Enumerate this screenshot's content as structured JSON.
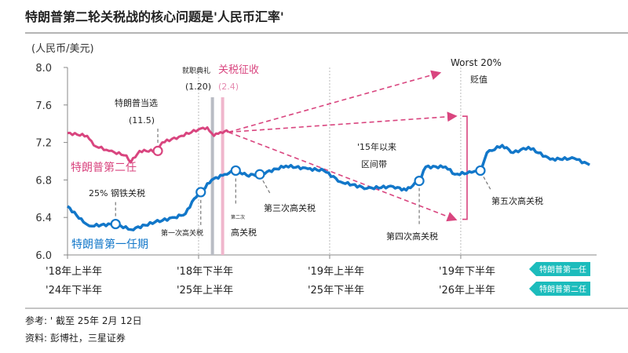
{
  "title": "特朗普第二轮关税战的核心问题是'人民币汇率'",
  "footnote": "参考: ' 截至 25年 2月 12日",
  "source": "资料: 彭博社，三星证券",
  "colors": {
    "first_term": "#1277c9",
    "second_term": "#d9457f",
    "badge": "#1cbcbc",
    "inauguration_bar": "#b9bcc4",
    "tariff_bar": "#f0b6cc"
  },
  "chart_data": {
    "type": "line",
    "ylabel": "(人民币/美元)",
    "ylim": [
      6.0,
      8.0
    ],
    "yticks": [
      "6.0",
      "6.4",
      "6.8",
      "7.2",
      "7.6",
      "8.0"
    ],
    "xticks_first_term": [
      "'18年上半年",
      "'18年下半年",
      "'19年上半年",
      "'19年下半年"
    ],
    "xticks_second_term": [
      "'24年下半年",
      "'25年上半年",
      "'25年下半年",
      "'26年上半年"
    ],
    "legend": [
      {
        "label": "特朗普第一任",
        "series": "first_term"
      },
      {
        "label": "特朗普第二任",
        "series": "second_term"
      }
    ],
    "series": [
      {
        "name": "特朗普第一任期",
        "key": "first_term",
        "points": [
          [
            "2018-01-01",
            6.52
          ],
          [
            "2018-01-23",
            6.35
          ],
          [
            "2018-02-01",
            6.31
          ],
          [
            "2018-03-07",
            6.33
          ],
          [
            "2018-03-28",
            6.27
          ],
          [
            "2018-05-01",
            6.35
          ],
          [
            "2018-05-28",
            6.4
          ],
          [
            "2018-06-13",
            6.44
          ],
          [
            "2018-06-25",
            6.6
          ],
          [
            "2018-07-04",
            6.67
          ],
          [
            "2018-07-19",
            6.8
          ],
          [
            "2018-08-07",
            6.86
          ],
          [
            "2018-08-22",
            6.9
          ],
          [
            "2018-09-07",
            6.85
          ],
          [
            "2018-09-25",
            6.86
          ],
          [
            "2018-11-01",
            6.95
          ],
          [
            "2018-12-01",
            6.92
          ],
          [
            "2018-12-23",
            6.9
          ],
          [
            "2019-01-16",
            6.78
          ],
          [
            "2019-02-22",
            6.71
          ],
          [
            "2019-03-28",
            6.73
          ],
          [
            "2019-04-16",
            6.69
          ],
          [
            "2019-05-04",
            6.79
          ],
          [
            "2019-05-13",
            6.94
          ],
          [
            "2019-06-10",
            6.94
          ],
          [
            "2019-06-23",
            6.86
          ],
          [
            "2019-07-16",
            6.88
          ],
          [
            "2019-07-28",
            6.9
          ],
          [
            "2019-08-07",
            7.09
          ],
          [
            "2019-08-28",
            7.17
          ],
          [
            "2019-09-13",
            7.09
          ],
          [
            "2019-10-04",
            7.15
          ],
          [
            "2019-11-04",
            7.02
          ],
          [
            "2019-12-07",
            7.03
          ],
          [
            "2019-12-28",
            6.96
          ]
        ]
      },
      {
        "name": "特朗普第二任",
        "key": "second_term",
        "points": [
          [
            "2024-07-01",
            7.3
          ],
          [
            "2024-07-28",
            7.27
          ],
          [
            "2024-08-07",
            7.17
          ],
          [
            "2024-08-28",
            7.11
          ],
          [
            "2024-09-22",
            7.06
          ],
          [
            "2024-09-28",
            6.99
          ],
          [
            "2024-10-10",
            7.11
          ],
          [
            "2024-11-05",
            7.11
          ],
          [
            "2024-11-11",
            7.2
          ],
          [
            "2024-12-04",
            7.26
          ],
          [
            "2025-01-01",
            7.34
          ],
          [
            "2025-01-13",
            7.36
          ],
          [
            "2025-01-22",
            7.27
          ],
          [
            "2025-02-01",
            7.31
          ],
          [
            "2025-02-07",
            7.32
          ],
          [
            "2025-02-12",
            7.31
          ]
        ]
      }
    ],
    "events_first_term": [
      {
        "label": "25% 钢铁关税",
        "date": "2018-03-07",
        "value": 6.33
      },
      {
        "label": "第一次高关税",
        "date": "2018-07-04",
        "value": 6.67
      },
      {
        "label_small": "第二次",
        "label": "高关税",
        "date": "2018-08-22",
        "value": 6.9
      },
      {
        "label": "第三次高关税",
        "date": "2018-09-25",
        "value": 6.86
      },
      {
        "label": "第四次高关税",
        "date": "2019-05-04",
        "value": 6.79
      },
      {
        "label": "第五次高关税",
        "date": "2019-07-28",
        "value": 6.9
      }
    ],
    "events_second_term": [
      {
        "label": "特朗普当选",
        "date_label": "(11.5)",
        "date": "2024-11-05",
        "value": 7.11
      },
      {
        "label": "就职典礼",
        "date_label": "(1.20)",
        "date": "2025-01-20"
      },
      {
        "label": "关税征收",
        "date_label": "(2.4)",
        "date": "2025-02-04"
      }
    ],
    "projections": [
      {
        "to_date": "2025-12-01",
        "to_value": 7.94,
        "label": "Worst 20%",
        "label2": "贬值"
      },
      {
        "to_date": "2025-12-23",
        "to_value": 7.48
      },
      {
        "to_date": "2025-12-23",
        "to_value": 6.38
      }
    ],
    "band": {
      "label": "'15年以来",
      "label2": "区间带",
      "range": [
        6.38,
        7.48
      ]
    }
  }
}
